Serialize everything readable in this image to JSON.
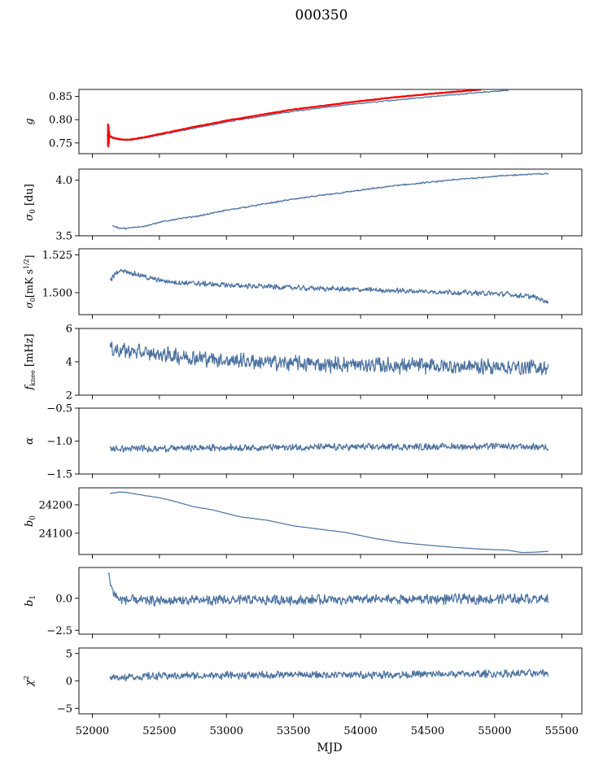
{
  "figure": {
    "title": "000350",
    "xlabel": "MJD",
    "x_ticks": [
      52000,
      52500,
      53000,
      53500,
      54000,
      54500,
      55000,
      55500
    ],
    "xlim": [
      51900,
      55650
    ],
    "data_x_range": [
      52110,
      55400
    ]
  },
  "colors": {
    "series": "#4c72a0",
    "fit": "#ff0000",
    "axes": "#000000"
  },
  "chart_data": [
    {
      "type": "line",
      "panel": "g",
      "ylabel": "g",
      "ylim": [
        0.727,
        0.865
      ],
      "yticks": [
        0.75,
        0.8,
        0.85
      ],
      "ytick_labels": [
        "0.75",
        "0.80",
        "0.85"
      ],
      "series": [
        {
          "name": "g",
          "color": "series",
          "points": [
            [
              52110,
              0.765
            ],
            [
              52150,
              0.76
            ],
            [
              52200,
              0.757
            ],
            [
              52250,
              0.756
            ],
            [
              52300,
              0.757
            ],
            [
              52400,
              0.761
            ],
            [
              52500,
              0.767
            ],
            [
              52600,
              0.773
            ],
            [
              52750,
              0.781
            ],
            [
              53000,
              0.795
            ],
            [
              53250,
              0.807
            ],
            [
              53500,
              0.818
            ],
            [
              53750,
              0.827
            ],
            [
              54000,
              0.835
            ],
            [
              54250,
              0.842
            ],
            [
              54500,
              0.849
            ],
            [
              54750,
              0.855
            ],
            [
              55000,
              0.861
            ],
            [
              55100,
              0.863
            ]
          ],
          "noise": 0.0015
        },
        {
          "name": "fit",
          "color": "fit",
          "points": [
            [
              52110,
              0.768
            ],
            [
              52150,
              0.762
            ],
            [
              52200,
              0.758
            ],
            [
              52250,
              0.757
            ],
            [
              52300,
              0.758
            ],
            [
              52400,
              0.763
            ],
            [
              52500,
              0.769
            ],
            [
              52600,
              0.775
            ],
            [
              52750,
              0.784
            ],
            [
              53000,
              0.798
            ],
            [
              53250,
              0.81
            ],
            [
              53500,
              0.822
            ],
            [
              53750,
              0.831
            ],
            [
              54000,
              0.84
            ],
            [
              54250,
              0.848
            ],
            [
              54500,
              0.855
            ],
            [
              54750,
              0.861
            ],
            [
              54900,
              0.865
            ]
          ],
          "noise": 0.0008
        },
        {
          "name": "fit-spike",
          "color": "fit",
          "points": [
            [
              52116,
              0.744
            ],
            [
              52117,
              0.79
            ],
            [
              52119,
              0.742
            ],
            [
              52121,
              0.786
            ],
            [
              52123,
              0.748
            ],
            [
              52125,
              0.775
            ],
            [
              52128,
              0.76
            ]
          ],
          "noise": 0
        }
      ]
    },
    {
      "type": "line",
      "panel": "sigma0_du",
      "ylabel": "σ0 [du]",
      "ylim": [
        3.5,
        4.1
      ],
      "yticks": [
        3.5,
        4.0
      ],
      "ytick_labels": [
        "3.5",
        "4.0"
      ],
      "series": [
        {
          "name": "sigma0",
          "color": "series",
          "points": [
            [
              52150,
              3.59
            ],
            [
              52200,
              3.57
            ],
            [
              52250,
              3.565
            ],
            [
              52400,
              3.59
            ],
            [
              52500,
              3.62
            ],
            [
              52600,
              3.645
            ],
            [
              52800,
              3.68
            ],
            [
              53000,
              3.73
            ],
            [
              53250,
              3.78
            ],
            [
              53500,
              3.83
            ],
            [
              53750,
              3.87
            ],
            [
              54000,
              3.91
            ],
            [
              54250,
              3.95
            ],
            [
              54500,
              3.98
            ],
            [
              54750,
              4.01
            ],
            [
              55000,
              4.035
            ],
            [
              55200,
              4.05
            ],
            [
              55400,
              4.06
            ]
          ],
          "noise": 0.008
        }
      ]
    },
    {
      "type": "line",
      "panel": "sigma0_mks",
      "ylabel": "σ0[mK s^1/2]",
      "ylim": [
        1.4855,
        1.529
      ],
      "yticks": [
        1.5,
        1.525
      ],
      "ytick_labels": [
        "1.500",
        "1.525"
      ],
      "series": [
        {
          "name": "sigma0_mks",
          "color": "series",
          "points": [
            [
              52130,
              1.508
            ],
            [
              52180,
              1.513
            ],
            [
              52220,
              1.515
            ],
            [
              52300,
              1.513
            ],
            [
              52450,
              1.509
            ],
            [
              52600,
              1.507
            ],
            [
              52800,
              1.506
            ],
            [
              53000,
              1.505
            ],
            [
              53300,
              1.504
            ],
            [
              53600,
              1.503
            ],
            [
              54000,
              1.502
            ],
            [
              54400,
              1.501
            ],
            [
              54800,
              1.5
            ],
            [
              55100,
              1.499
            ],
            [
              55300,
              1.497
            ],
            [
              55400,
              1.494
            ]
          ],
          "noise": 0.002
        }
      ]
    },
    {
      "type": "line",
      "panel": "fknee",
      "ylabel": "fknee [mHz]",
      "ylim": [
        2,
        6
      ],
      "yticks": [
        2,
        4,
        6
      ],
      "ytick_labels": [
        "2",
        "4",
        "6"
      ],
      "series": [
        {
          "name": "fknee",
          "color": "series",
          "points": [
            [
              52130,
              4.8
            ],
            [
              52400,
              4.5
            ],
            [
              52700,
              4.3
            ],
            [
              53000,
              4.1
            ],
            [
              53500,
              3.9
            ],
            [
              54000,
              3.8
            ],
            [
              54500,
              3.75
            ],
            [
              55000,
              3.7
            ],
            [
              55400,
              3.65
            ]
          ],
          "noise": 0.55
        }
      ]
    },
    {
      "type": "line",
      "panel": "alpha",
      "ylabel": "α",
      "ylim": [
        -1.5,
        -0.5
      ],
      "yticks": [
        -1.5,
        -1.0,
        -0.5
      ],
      "ytick_labels": [
        "−1.5",
        "−1.0",
        "−0.5"
      ],
      "series": [
        {
          "name": "alpha",
          "color": "series",
          "points": [
            [
              52130,
              -1.12
            ],
            [
              53000,
              -1.1
            ],
            [
              54000,
              -1.09
            ],
            [
              55000,
              -1.08
            ],
            [
              55400,
              -1.09
            ]
          ],
          "noise": 0.06
        }
      ]
    },
    {
      "type": "line",
      "panel": "b0",
      "ylabel": "b0",
      "ylim": [
        24025,
        24260
      ],
      "yticks": [
        24100,
        24200
      ],
      "ytick_labels": [
        "24100",
        "24200"
      ],
      "series": [
        {
          "name": "b0",
          "color": "series",
          "points": [
            [
              52130,
              24240
            ],
            [
              52200,
              24245
            ],
            [
              52250,
              24244
            ],
            [
              52400,
              24232
            ],
            [
              52500,
              24225
            ],
            [
              52600,
              24214
            ],
            [
              52750,
              24194
            ],
            [
              52900,
              24182
            ],
            [
              53000,
              24170
            ],
            [
              53100,
              24158
            ],
            [
              53300,
              24146
            ],
            [
              53500,
              24126
            ],
            [
              53700,
              24114
            ],
            [
              53900,
              24102
            ],
            [
              54100,
              24082
            ],
            [
              54300,
              24067
            ],
            [
              54500,
              24058
            ],
            [
              54700,
              24050
            ],
            [
              54900,
              24044
            ],
            [
              55100,
              24040
            ],
            [
              55200,
              24032
            ],
            [
              55300,
              24033
            ],
            [
              55400,
              24036
            ]
          ],
          "noise": 0.6
        }
      ]
    },
    {
      "type": "line",
      "panel": "b1",
      "ylabel": "b1",
      "ylim": [
        -2.8,
        2.4
      ],
      "yticks": [
        -2.5,
        0.0
      ],
      "ytick_labels": [
        "−2.5",
        "0.0"
      ],
      "series": [
        {
          "name": "b1",
          "color": "series",
          "points": [
            [
              52120,
              1.9
            ],
            [
              52150,
              0.6
            ],
            [
              52200,
              -0.1
            ],
            [
              52400,
              -0.2
            ],
            [
              53000,
              -0.15
            ],
            [
              54000,
              -0.1
            ],
            [
              55000,
              -0.05
            ],
            [
              55400,
              0.0
            ]
          ],
          "noise": 0.45
        }
      ]
    },
    {
      "type": "line",
      "panel": "chi2",
      "ylabel": "χ2",
      "ylim": [
        -6,
        6
      ],
      "yticks": [
        -5,
        0,
        5
      ],
      "ytick_labels": [
        "−5",
        "0",
        "5"
      ],
      "series": [
        {
          "name": "chi2",
          "color": "series",
          "points": [
            [
              52130,
              0.6
            ],
            [
              52500,
              0.9
            ],
            [
              53000,
              1.0
            ],
            [
              53500,
              1.1
            ],
            [
              54000,
              1.1
            ],
            [
              54500,
              1.2
            ],
            [
              55000,
              1.3
            ],
            [
              55400,
              1.4
            ]
          ],
          "noise": 0.8
        }
      ]
    }
  ]
}
